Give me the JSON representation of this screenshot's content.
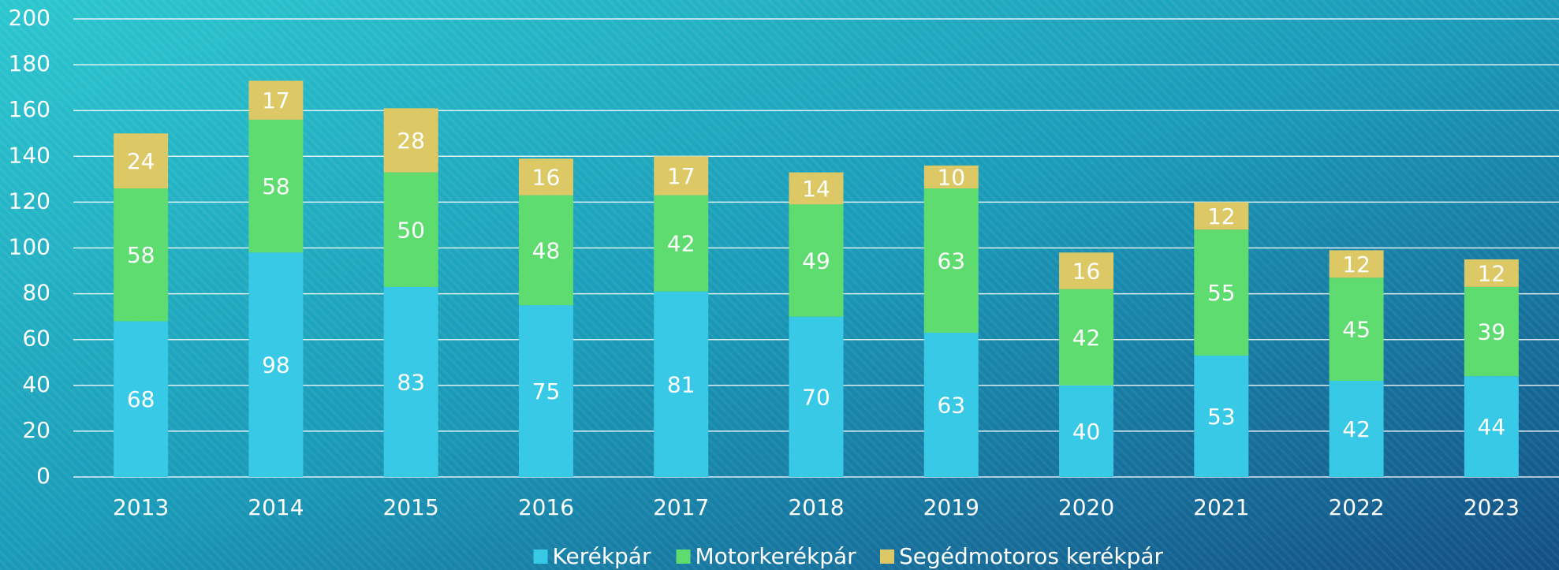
{
  "chart_data": {
    "type": "stacked_bar",
    "categories": [
      "2013",
      "2014",
      "2015",
      "2016",
      "2017",
      "2018",
      "2019",
      "2020",
      "2021",
      "2022",
      "2023"
    ],
    "series": [
      {
        "name": "Kerékpár",
        "color": "#38c9e6",
        "values": [
          68,
          98,
          83,
          75,
          81,
          70,
          63,
          40,
          53,
          42,
          44
        ]
      },
      {
        "name": "Motorkerékpár",
        "color": "#5fdc6f",
        "values": [
          58,
          58,
          50,
          48,
          42,
          49,
          63,
          42,
          55,
          45,
          39
        ]
      },
      {
        "name": "Segédmotoros kerékpár",
        "color": "#dcc865",
        "values": [
          24,
          17,
          28,
          16,
          17,
          14,
          10,
          16,
          12,
          12,
          12
        ]
      }
    ],
    "ylim": [
      0,
      200
    ],
    "yticks": [
      0,
      20,
      40,
      60,
      80,
      100,
      120,
      140,
      160,
      180,
      200
    ],
    "grid": true,
    "legend": "bottom"
  }
}
